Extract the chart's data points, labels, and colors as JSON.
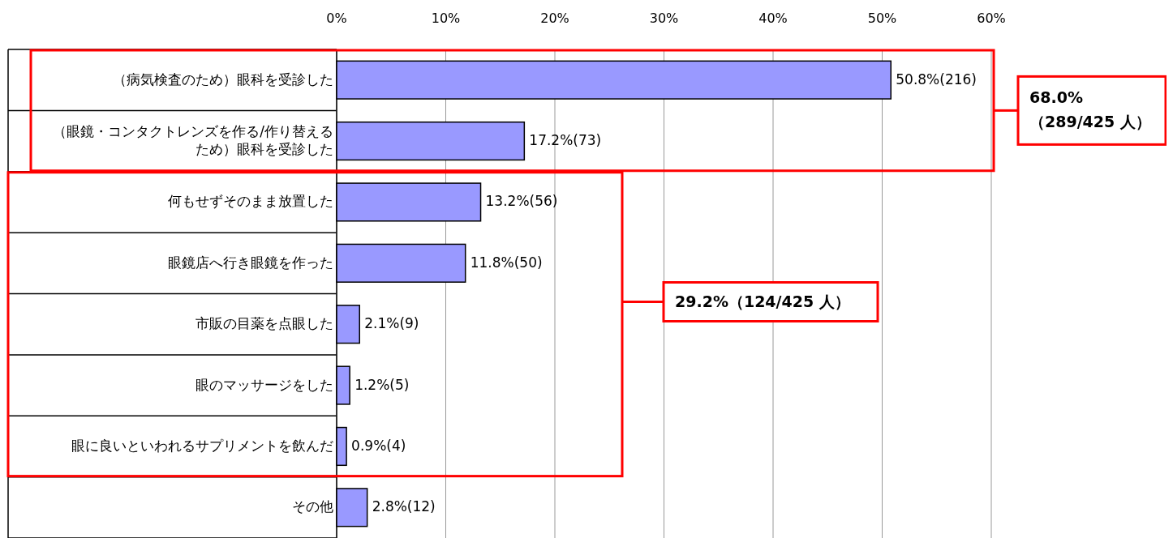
{
  "chart_data": {
    "type": "bar",
    "orientation": "horizontal",
    "categories": [
      "（病気検査のため）眼科を受診した",
      "（眼鏡・コンタクトレンズを作る/作り替えるため）眼科を受診した",
      "何もせずそのまま放置した",
      "眼鏡店へ行き眼鏡を作った",
      "市販の目薬を点眼した",
      "眼のマッサージをした",
      "眼に良いといわれるサプリメントを飲んだ",
      "その他"
    ],
    "values": [
      50.8,
      17.2,
      13.2,
      11.8,
      2.1,
      1.2,
      0.9,
      2.8
    ],
    "value_labels": [
      "50.8%(216)",
      "17.2%(73)",
      "13.2%(56)",
      "11.8%(50)",
      "2.1%(9)",
      "1.2%(5)",
      "0.9%(4)",
      "2.8%(12)"
    ],
    "color": "#9999ff",
    "xlim": [
      0,
      60
    ],
    "xticks": [
      {
        "value": 0,
        "label": "0%"
      },
      {
        "value": 10,
        "label": "10%"
      },
      {
        "value": 20,
        "label": "20%"
      },
      {
        "value": 30,
        "label": "30%"
      },
      {
        "value": 40,
        "label": "40%"
      },
      {
        "value": 50,
        "label": "50%"
      },
      {
        "value": 60,
        "label": "60%"
      }
    ],
    "grid": "x",
    "annotations": [
      "68.0%\n（289/425 人）",
      "29.2%（124/425 人）"
    ]
  }
}
